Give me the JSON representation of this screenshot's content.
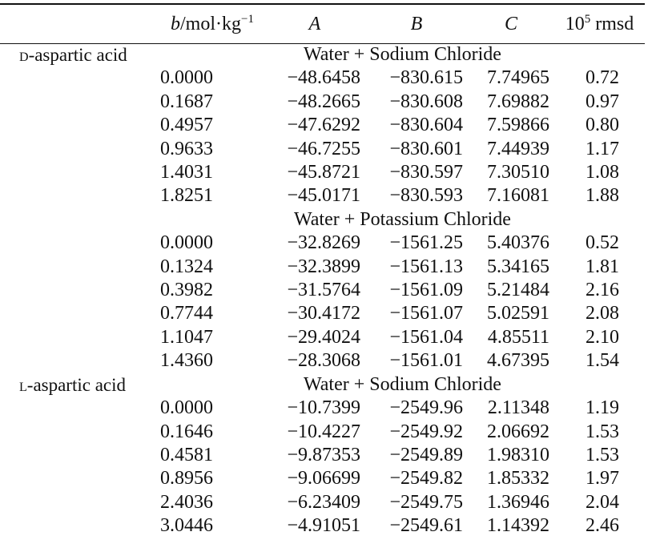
{
  "header": {
    "b_var": "b",
    "b_unit": "/mol·kg",
    "b_exp": "−1",
    "A": "A",
    "B": "B",
    "C": "C",
    "rmsd_base": "10",
    "rmsd_exp": "5",
    "rmsd_label": " rmsd"
  },
  "groups": [
    {
      "compound": "D-aspartic acid",
      "compound_prefix": "d",
      "compound_rest": "-aspartic acid",
      "sections": [
        {
          "system": "Water + Sodium Chloride",
          "rows": [
            {
              "b": "0.0000",
              "A": "−48.6458",
              "B": "−830.615",
              "C": "7.74965",
              "rmsd": "0.72"
            },
            {
              "b": "0.1687",
              "A": "−48.2665",
              "B": "−830.608",
              "C": "7.69882",
              "rmsd": "0.97"
            },
            {
              "b": "0.4957",
              "A": "−47.6292",
              "B": "−830.604",
              "C": "7.59866",
              "rmsd": "0.80"
            },
            {
              "b": "0.9633",
              "A": "−46.7255",
              "B": "−830.601",
              "C": "7.44939",
              "rmsd": "1.17"
            },
            {
              "b": "1.4031",
              "A": "−45.8721",
              "B": "−830.597",
              "C": "7.30510",
              "rmsd": "1.08"
            },
            {
              "b": "1.8251",
              "A": "−45.0171",
              "B": "−830.593",
              "C": "7.16081",
              "rmsd": "1.88"
            }
          ]
        },
        {
          "system": "Water + Potassium Chloride",
          "rows": [
            {
              "b": "0.0000",
              "A": "−32.8269",
              "B": "−1561.25",
              "C": "5.40376",
              "rmsd": "0.52"
            },
            {
              "b": "0.1324",
              "A": "−32.3899",
              "B": "−1561.13",
              "C": "5.34165",
              "rmsd": "1.81"
            },
            {
              "b": "0.3982",
              "A": "−31.5764",
              "B": "−1561.09",
              "C": "5.21484",
              "rmsd": "2.16"
            },
            {
              "b": "0.7744",
              "A": "−30.4172",
              "B": "−1561.07",
              "C": "5.02591",
              "rmsd": "2.08"
            },
            {
              "b": "1.1047",
              "A": "−29.4024",
              "B": "−1561.04",
              "C": "4.85511",
              "rmsd": "2.10"
            },
            {
              "b": "1.4360",
              "A": "−28.3068",
              "B": "−1561.01",
              "C": "4.67395",
              "rmsd": "1.54"
            }
          ]
        }
      ]
    },
    {
      "compound": "L-aspartic acid",
      "compound_prefix": "l",
      "compound_rest": "-aspartic acid",
      "sections": [
        {
          "system": "Water + Sodium Chloride",
          "rows": [
            {
              "b": "0.0000",
              "A": "−10.7399",
              "B": "−2549.96",
              "C": "2.11348",
              "rmsd": "1.19"
            },
            {
              "b": "0.1646",
              "A": "−10.4227",
              "B": "−2549.92",
              "C": "2.06692",
              "rmsd": "1.53"
            },
            {
              "b": "0.4581",
              "A": "−9.87353",
              "B": "−2549.89",
              "C": "1.98310",
              "rmsd": "1.53"
            },
            {
              "b": "0.8956",
              "A": "−9.06699",
              "B": "−2549.82",
              "C": "1.85332",
              "rmsd": "1.97"
            },
            {
              "b": "2.4036",
              "A": "−6.23409",
              "B": "−2549.75",
              "C": "1.36946",
              "rmsd": "2.04"
            },
            {
              "b": "3.0446",
              "A": "−4.91051",
              "B": "−2549.61",
              "C": "1.14392",
              "rmsd": "2.46"
            }
          ]
        }
      ]
    }
  ]
}
